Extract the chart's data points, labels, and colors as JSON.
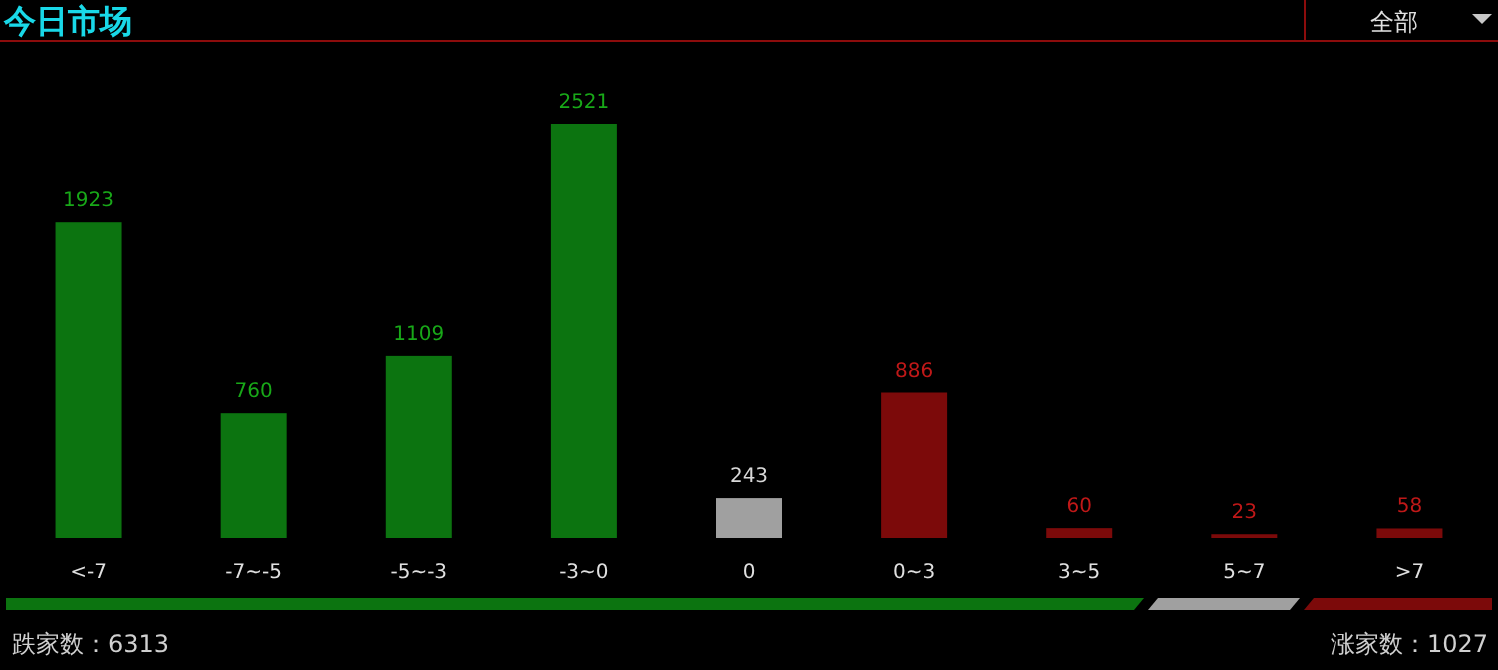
{
  "chart_data": {
    "type": "bar",
    "title": "今日市场",
    "categories": [
      "<-7",
      "-7~-5",
      "-5~-3",
      "-3~0",
      "0",
      "0~3",
      "3~5",
      "5~7",
      ">7"
    ],
    "values": [
      1923,
      760,
      1109,
      2521,
      243,
      886,
      60,
      23,
      58
    ],
    "colors": [
      "#0c7410",
      "#0c7410",
      "#0c7410",
      "#0c7410",
      "#a0a0a0",
      "#7c0a0a",
      "#7c0a0a",
      "#7c0a0a",
      "#7c0a0a"
    ],
    "data_labels": true,
    "annotations": [
      "全部",
      "跌家数：6313",
      "涨家数：1027"
    ]
  }
}
